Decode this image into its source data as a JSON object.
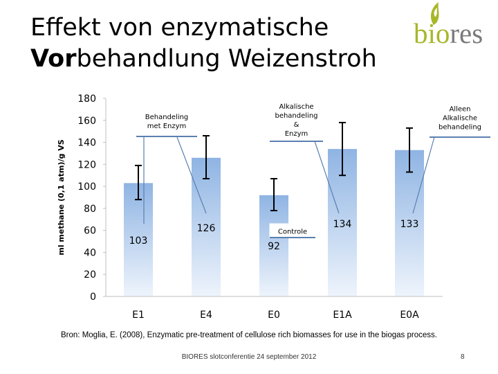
{
  "slide": {
    "title_line1": "Effekt von enzymatische",
    "title_line2_bold": "Vor",
    "title_line2_rest": "behandlung Weizenstroh",
    "source": "Bron: Moglia, E. (2008), Enzymatic pre-treatment of cellulose rich biomasses for use in the biogas process.",
    "footer": "BIORES slotconferentie 24 september 2012",
    "page_number": "8"
  },
  "logo": {
    "green_part": "bio",
    "grey_part": "res",
    "colors": {
      "green": "#a8b72a",
      "grey": "#7a7a7a"
    }
  },
  "chart_data": {
    "type": "bar",
    "ylabel": "ml methane (0,1 atm)/g VS",
    "ylim": [
      0,
      180
    ],
    "yticks": [
      0,
      20,
      40,
      60,
      80,
      100,
      120,
      140,
      160,
      180
    ],
    "categories": [
      "E1",
      "E4",
      "E0",
      "E1A",
      "E0A"
    ],
    "values": [
      103,
      126,
      92,
      134,
      133
    ],
    "value_labels": [
      "103",
      "126",
      "92",
      "134",
      "133"
    ],
    "error_bars": [
      [
        88,
        119
      ],
      [
        107,
        146
      ],
      [
        78,
        107
      ],
      [
        110,
        158
      ],
      [
        113,
        153
      ]
    ],
    "grid": false,
    "bar_color_top": "#8fb4e3",
    "bar_color_bottom": "#eef4fc",
    "callouts": [
      {
        "lines": [
          "Behandeling",
          "met Enzym"
        ],
        "targets": [
          "E1",
          "E4"
        ]
      },
      {
        "lines": [
          "Alkalische",
          "behandeling",
          "&",
          "Enzym"
        ],
        "targets": [
          "E1A"
        ]
      },
      {
        "lines": [
          "Alleen",
          "Alkalische",
          "behandeling"
        ],
        "targets": [
          "E0A"
        ]
      },
      {
        "lines": [
          "Controle"
        ],
        "targets": []
      }
    ]
  }
}
